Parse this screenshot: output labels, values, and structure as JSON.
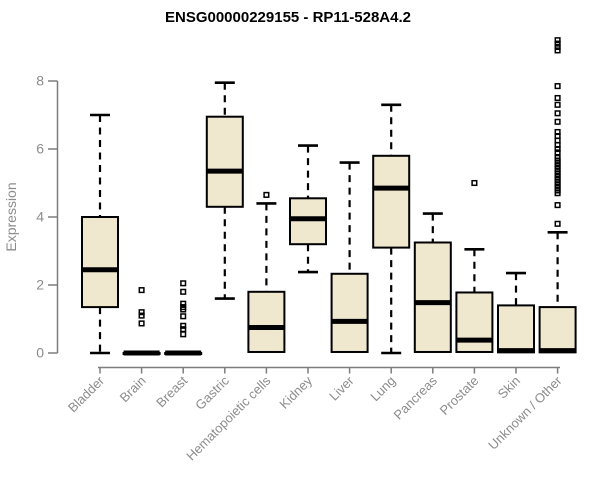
{
  "chart_data": {
    "type": "boxplot",
    "title": "ENSG00000229155 - RP11-528A4.2",
    "ylabel": "Expression",
    "xlabel": "",
    "ylim": [
      0,
      9.3
    ],
    "yticks": [
      0,
      2,
      4,
      6,
      8
    ],
    "grid": "off",
    "legend": "none",
    "colors": {
      "box_fill": "#EFE8CE",
      "box_stroke": "#000000",
      "median": "#000000",
      "whisker": "#000000",
      "outlier": "#000000",
      "axis": "#7d7d7d",
      "tick_label": "#8c8c8c",
      "title": "#000000"
    },
    "categories": [
      "Bladder",
      "Brain",
      "Breast",
      "Gastric",
      "Hematopoietic cells",
      "Kidney",
      "Liver",
      "Lung",
      "Pancreas",
      "Prostate",
      "Skin",
      "Unknown / Other"
    ],
    "boxes": [
      {
        "label": "Bladder",
        "low": 0,
        "q1": 1.35,
        "median": 2.45,
        "q3": 4.0,
        "high": 7.0,
        "outliers": []
      },
      {
        "label": "Brain",
        "low": 0,
        "q1": 0,
        "median": 0,
        "q3": 0,
        "high": 0,
        "outliers": [
          1.85,
          1.2,
          1.1,
          0.87
        ]
      },
      {
        "label": "Breast",
        "low": 0,
        "q1": 0,
        "median": 0,
        "q3": 0,
        "high": 0,
        "outliers": [
          2.05,
          1.8,
          1.45,
          1.35,
          1.28,
          1.08,
          0.8,
          0.7,
          0.55
        ]
      },
      {
        "label": "Gastric",
        "low": 1.6,
        "q1": 4.3,
        "median": 5.35,
        "q3": 6.95,
        "high": 7.95,
        "outliers": []
      },
      {
        "label": "Hematopoietic cells",
        "low": 0,
        "q1": 0.03,
        "median": 0.75,
        "q3": 1.8,
        "high": 4.4,
        "outliers": [
          4.65
        ]
      },
      {
        "label": "Kidney",
        "low": 2.38,
        "q1": 3.2,
        "median": 3.95,
        "q3": 4.55,
        "high": 6.1,
        "outliers": []
      },
      {
        "label": "Liver",
        "low": 0,
        "q1": 0.03,
        "median": 0.93,
        "q3": 2.33,
        "high": 5.6,
        "outliers": []
      },
      {
        "label": "Lung",
        "low": 0,
        "q1": 3.1,
        "median": 4.85,
        "q3": 5.8,
        "high": 7.3,
        "outliers": []
      },
      {
        "label": "Pancreas",
        "low": 0,
        "q1": 0.03,
        "median": 1.48,
        "q3": 3.25,
        "high": 4.1,
        "outliers": []
      },
      {
        "label": "Prostate",
        "low": 0,
        "q1": 0.03,
        "median": 0.38,
        "q3": 1.78,
        "high": 3.05,
        "outliers": [
          5.0
        ]
      },
      {
        "label": "Skin",
        "low": 0,
        "q1": 0.02,
        "median": 0.07,
        "q3": 1.4,
        "high": 2.35,
        "outliers": []
      },
      {
        "label": "Unknown / Other",
        "low": 0,
        "q1": 0.02,
        "median": 0.07,
        "q3": 1.35,
        "high": 3.55,
        "outliers": [
          3.8,
          4.35,
          4.7,
          4.78,
          4.86,
          4.94,
          5.02,
          5.1,
          5.18,
          5.26,
          5.34,
          5.42,
          5.5,
          5.58,
          5.66,
          5.74,
          5.9,
          6.0,
          6.12,
          6.25,
          6.38,
          6.5,
          6.8,
          7.05,
          7.3,
          7.5,
          7.85,
          8.9,
          9.0,
          9.1,
          9.2
        ]
      }
    ]
  }
}
